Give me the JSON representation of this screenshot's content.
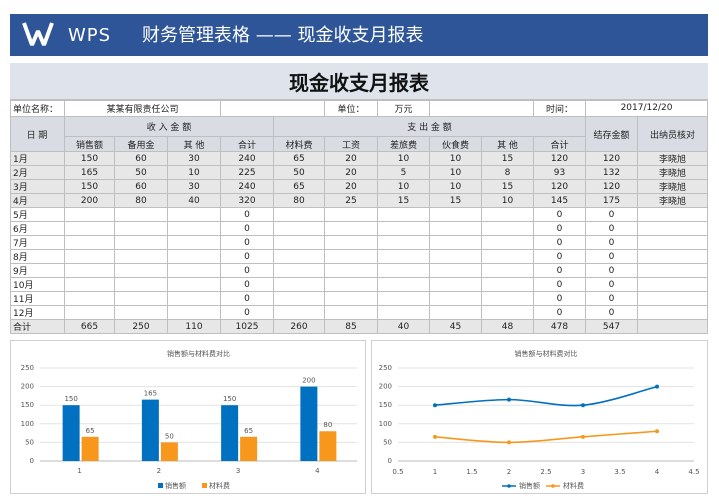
{
  "header": {
    "logo": "WPS",
    "title": "财务管理表格 —— 现金收支月报表"
  },
  "table": {
    "title": "现金收支月报表",
    "info": {
      "unit_name_label": "单位名称：",
      "unit_name": "某某有限责任公司",
      "unit_label": "单位：",
      "unit": "万元",
      "date_label": "时间：",
      "date": "2017/12/20"
    },
    "headers": {
      "date": "日 期",
      "income": "收 入 金 额",
      "expense": "支 出 金 额",
      "balance": "结存金额",
      "cashier": "出纳员核对",
      "columns": [
        "销售额",
        "备用金",
        "其 他",
        "合计",
        "材料费",
        "工资",
        "差旅费",
        "伙食费",
        "其 他",
        "合计"
      ]
    },
    "rows": [
      [
        "1月",
        150,
        60,
        30,
        240,
        65,
        20,
        10,
        10,
        15,
        120,
        120,
        "李晓旭"
      ],
      [
        "2月",
        165,
        50,
        10,
        225,
        50,
        20,
        5,
        10,
        8,
        93,
        132,
        "李晓旭"
      ],
      [
        "3月",
        150,
        60,
        30,
        240,
        65,
        20,
        10,
        10,
        15,
        120,
        120,
        "李晓旭"
      ],
      [
        "4月",
        200,
        80,
        40,
        320,
        80,
        25,
        15,
        15,
        10,
        145,
        175,
        "李晓旭"
      ],
      [
        "5月",
        null,
        null,
        null,
        0,
        null,
        null,
        null,
        null,
        null,
        0,
        0,
        null
      ],
      [
        "6月",
        null,
        null,
        null,
        0,
        null,
        null,
        null,
        null,
        null,
        0,
        0,
        null
      ],
      [
        "7月",
        null,
        null,
        null,
        0,
        null,
        null,
        null,
        null,
        null,
        0,
        0,
        null
      ],
      [
        "8月",
        null,
        null,
        null,
        0,
        null,
        null,
        null,
        null,
        null,
        0,
        0,
        null
      ],
      [
        "9月",
        null,
        null,
        null,
        0,
        null,
        null,
        null,
        null,
        null,
        0,
        0,
        null
      ],
      [
        "10月",
        null,
        null,
        null,
        0,
        null,
        null,
        null,
        null,
        null,
        0,
        0,
        null
      ],
      [
        "11月",
        null,
        null,
        null,
        0,
        null,
        null,
        null,
        null,
        null,
        0,
        0,
        null
      ],
      [
        "12月",
        null,
        null,
        null,
        0,
        null,
        null,
        null,
        null,
        null,
        0,
        0,
        null
      ]
    ],
    "total": [
      "合计",
      665,
      250,
      110,
      1025,
      260,
      85,
      40,
      45,
      48,
      478,
      547,
      null
    ]
  },
  "chart_data": [
    {
      "type": "bar",
      "title": "销售额与材料费对比",
      "categories": [
        "1",
        "2",
        "3",
        "4"
      ],
      "series": [
        {
          "name": "销售额",
          "color": "#0070c0",
          "values": [
            150,
            165,
            150,
            200
          ]
        },
        {
          "name": "材料费",
          "color": "#f7981d",
          "values": [
            65,
            50,
            65,
            80
          ]
        }
      ],
      "ylim": [
        0,
        250
      ],
      "yticks": [
        0,
        50,
        100,
        150,
        200,
        250
      ],
      "grid": true,
      "data_labels": true,
      "legend": "bottom"
    },
    {
      "type": "line",
      "title": "销售额与材料费对比",
      "x": [
        1,
        2,
        3,
        4
      ],
      "series": [
        {
          "name": "销售额",
          "color": "#0070c0",
          "values": [
            150,
            165,
            150,
            200
          ]
        },
        {
          "name": "材料费",
          "color": "#f7981d",
          "values": [
            65,
            50,
            65,
            80
          ]
        }
      ],
      "xlim": [
        0.5,
        4.5
      ],
      "xticks": [
        0.5,
        1,
        1.5,
        2,
        2.5,
        3,
        3.5,
        4,
        4.5
      ],
      "ylim": [
        0,
        250
      ],
      "yticks": [
        0,
        50,
        100,
        150,
        200,
        250
      ],
      "grid": true,
      "smooth": true,
      "legend": "bottom"
    }
  ]
}
